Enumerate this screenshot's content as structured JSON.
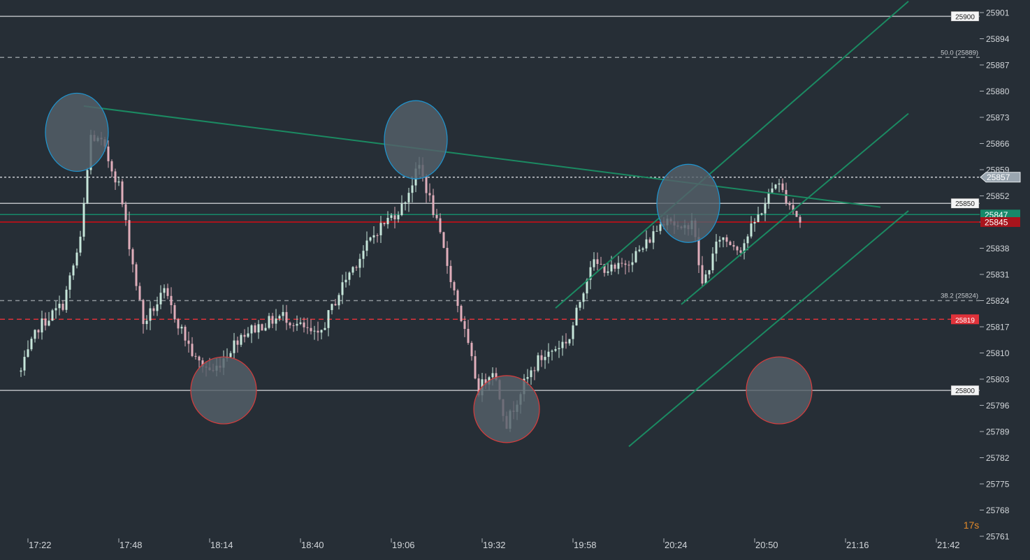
{
  "chart_data": {
    "type": "candlestick",
    "price_axis": {
      "range": [
        25761,
        25901
      ],
      "tick_labels": [
        "25901",
        "25894",
        "25887",
        "25880",
        "25873",
        "25866",
        "25859",
        "25852",
        "25845",
        "25838",
        "25831",
        "25824",
        "25817",
        "25810",
        "25803",
        "25796",
        "25789",
        "25782",
        "25775",
        "25768",
        "25761"
      ]
    },
    "time_axis": {
      "tick_labels": [
        "17:22",
        "17:48",
        "18:14",
        "18:40",
        "19:06",
        "19:32",
        "19:58",
        "20:24",
        "20:50",
        "21:16",
        "21:42"
      ]
    },
    "horizontal_levels": [
      {
        "price": 25900,
        "label": "25900",
        "style": "solid",
        "color": "#b8bcc0",
        "tag": "box"
      },
      {
        "price": 25889,
        "label": "50.0 (25889)",
        "style": "dashed",
        "color": "#8f959b",
        "tag": "text"
      },
      {
        "price": 25857,
        "label": "25857",
        "style": "dotted",
        "color": "#c8ccd0",
        "tag": "current"
      },
      {
        "price": 25850,
        "label": "25850",
        "style": "solid",
        "color": "#b8bcc0",
        "tag": "box"
      },
      {
        "price": 25847,
        "label": "25847",
        "style": "solid",
        "color": "#16896a",
        "tag": "fill"
      },
      {
        "price": 25845,
        "label": "25845",
        "style": "solid",
        "color": "#a8141c",
        "tag": "fill"
      },
      {
        "price": 25824,
        "label": "38.2 (25824)",
        "style": "dashed",
        "color": "#8f959b",
        "tag": "text"
      },
      {
        "price": 25819,
        "label": "25819",
        "style": "dashed",
        "color": "#e0323a",
        "tag": "fill"
      },
      {
        "price": 25800,
        "label": "25800",
        "style": "solid",
        "color": "#b8bcc0",
        "tag": "box"
      }
    ],
    "trendlines": [
      {
        "from": {
          "time": "17:38",
          "price": 25876
        },
        "to": {
          "time": "21:26",
          "price": 25849
        }
      },
      {
        "from": {
          "time": "19:53",
          "price": 25822
        },
        "to": {
          "time": "21:34",
          "price": 25904
        }
      },
      {
        "from": {
          "time": "20:29",
          "price": 25823
        },
        "to": {
          "time": "21:34",
          "price": 25874
        }
      },
      {
        "from": {
          "time": "20:14",
          "price": 25785
        },
        "to": {
          "time": "21:34",
          "price": 25848
        }
      }
    ],
    "highlight_circles": [
      {
        "time": "17:36",
        "price": 25869,
        "kind": "resistance"
      },
      {
        "time": "19:13",
        "price": 25867,
        "kind": "resistance"
      },
      {
        "time": "20:31",
        "price": 25850,
        "kind": "resistance"
      },
      {
        "time": "18:18",
        "price": 25800,
        "kind": "support"
      },
      {
        "time": "19:39",
        "price": 25795,
        "kind": "support"
      },
      {
        "time": "20:57",
        "price": 25800,
        "kind": "support"
      }
    ],
    "waypoints": [
      {
        "time": "17:20",
        "price": 25805
      },
      {
        "time": "17:25",
        "price": 25817
      },
      {
        "time": "17:32",
        "price": 25823
      },
      {
        "time": "17:37",
        "price": 25840
      },
      {
        "time": "17:40",
        "price": 25868
      },
      {
        "time": "17:43",
        "price": 25866
      },
      {
        "time": "17:48",
        "price": 25855
      },
      {
        "time": "17:55",
        "price": 25818
      },
      {
        "time": "18:01",
        "price": 25826
      },
      {
        "time": "18:10",
        "price": 25808
      },
      {
        "time": "18:15",
        "price": 25805
      },
      {
        "time": "18:23",
        "price": 25815
      },
      {
        "time": "18:35",
        "price": 25820
      },
      {
        "time": "18:45",
        "price": 25814
      },
      {
        "time": "18:53",
        "price": 25830
      },
      {
        "time": "19:02",
        "price": 25843
      },
      {
        "time": "19:09",
        "price": 25849
      },
      {
        "time": "19:14",
        "price": 25860
      },
      {
        "time": "19:18",
        "price": 25848
      },
      {
        "time": "19:25",
        "price": 25823
      },
      {
        "time": "19:31",
        "price": 25800
      },
      {
        "time": "19:35",
        "price": 25806
      },
      {
        "time": "19:39",
        "price": 25791
      },
      {
        "time": "19:43",
        "price": 25800
      },
      {
        "time": "19:48",
        "price": 25808
      },
      {
        "time": "19:57",
        "price": 25814
      },
      {
        "time": "20:03",
        "price": 25834
      },
      {
        "time": "20:10",
        "price": 25832
      },
      {
        "time": "20:18",
        "price": 25838
      },
      {
        "time": "20:25",
        "price": 25847
      },
      {
        "time": "20:29",
        "price": 25842
      },
      {
        "time": "20:32",
        "price": 25846
      },
      {
        "time": "20:35",
        "price": 25828
      },
      {
        "time": "20:40",
        "price": 25841
      },
      {
        "time": "20:46",
        "price": 25838
      },
      {
        "time": "20:53",
        "price": 25850
      },
      {
        "time": "20:56",
        "price": 25856
      },
      {
        "time": "21:00",
        "price": 25850
      },
      {
        "time": "21:03",
        "price": 25845
      }
    ],
    "countdown": "17s",
    "colors": {
      "background": "#262e36",
      "bull": "#c6e6da",
      "bear": "#e0aebb",
      "trendline": "#1b8a62",
      "resistance_circle_stroke": "#1e96d2",
      "support_circle_stroke": "#d83c3c",
      "circle_fill": "#55606a",
      "axis_text": "#d2d6da",
      "countdown": "#e48a2a"
    }
  }
}
